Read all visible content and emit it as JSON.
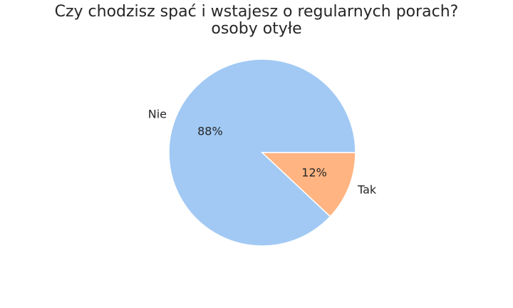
{
  "chart_data": {
    "type": "pie",
    "title": "Czy chodzisz spać i wstajesz o regularnych porach?",
    "subtitle": "osoby otyłe",
    "categories": [
      "Nie",
      "Tak"
    ],
    "values": [
      88,
      12
    ],
    "percent_labels": [
      "88%",
      "12%"
    ],
    "colors": [
      "#a1c9f4",
      "#ffb482"
    ],
    "edge_color": "#ffffff",
    "legend": "none"
  }
}
